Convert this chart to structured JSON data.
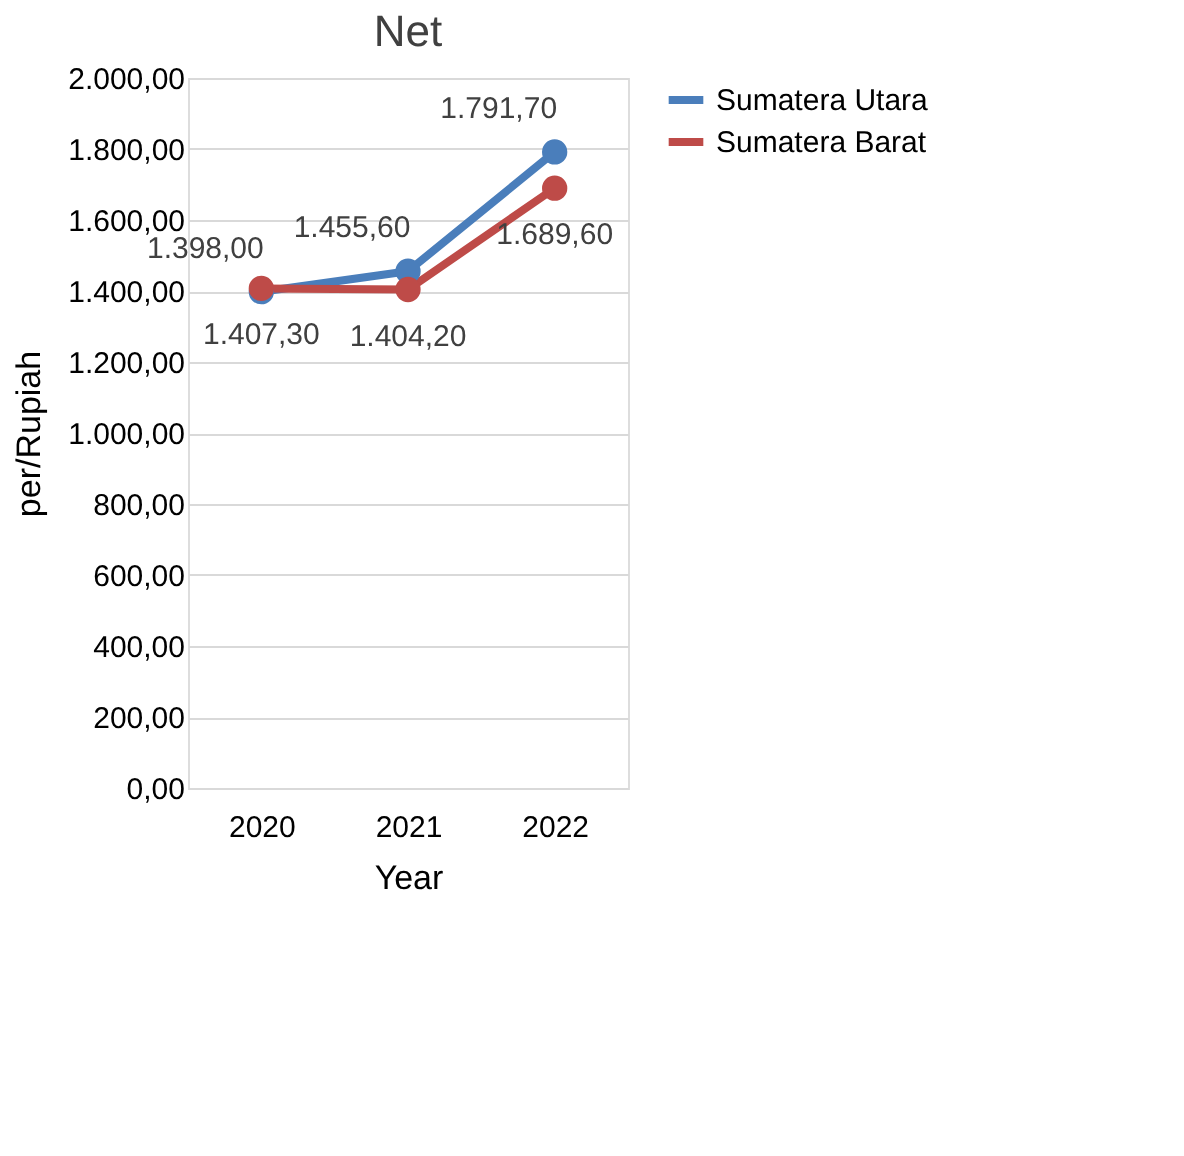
{
  "chart_data": {
    "type": "line",
    "title": "Net",
    "xlabel": "Year",
    "ylabel": "per/Rupiah",
    "categories": [
      "2020",
      "2021",
      "2022"
    ],
    "series": [
      {
        "name": "Sumatera Utara",
        "color": "#4a7ebb",
        "values": [
          1398.0,
          1455.6,
          1791.7
        ],
        "value_labels": [
          "1.398,00",
          "1.455,60",
          "1.791,70"
        ]
      },
      {
        "name": "Sumatera Barat",
        "color": "#be4b48",
        "values": [
          1407.3,
          1404.2,
          1689.6
        ],
        "value_labels": [
          "1.407,30",
          "1.404,20",
          "1.689,60"
        ]
      }
    ],
    "ylim": [
      0,
      2000
    ],
    "yticks": [
      {
        "value": 0,
        "label": "0,00"
      },
      {
        "value": 200,
        "label": "200,00"
      },
      {
        "value": 400,
        "label": "400,00"
      },
      {
        "value": 600,
        "label": "600,00"
      },
      {
        "value": 800,
        "label": "800,00"
      },
      {
        "value": 1000,
        "label": "1.000,00"
      },
      {
        "value": 1200,
        "label": "1.200,00"
      },
      {
        "value": 1400,
        "label": "1.400,00"
      },
      {
        "value": 1600,
        "label": "1.600,00"
      },
      {
        "value": 1800,
        "label": "1.800,00"
      },
      {
        "value": 2000,
        "label": "2.000,00"
      }
    ],
    "grid": "y",
    "legend": "right",
    "marker": "circle",
    "line_style": "solid"
  }
}
